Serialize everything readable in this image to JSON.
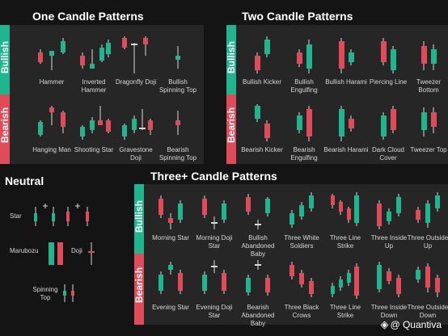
{
  "colors": {
    "bullish": "#1fb58f",
    "bearish": "#e04b5a",
    "wick": "#d9d9d9",
    "panel": "#262626",
    "background": "#141414"
  },
  "sections": {
    "one": "One Candle Patterns",
    "two": "Two Candle Patterns",
    "neutral": "Neutral",
    "three": "Three+ Candle Patterns"
  },
  "labels": {
    "bullish": "Bullish",
    "bearish": "Bearish"
  },
  "one": {
    "bullish": [
      "Hammer",
      "Inverted Hammer",
      "Dragonfly Doji",
      "Bullish Spinning Top"
    ],
    "bearish": [
      "Hanging Man",
      "Shooting Star",
      "Gravestone Doji",
      "Bearish Spinning Top"
    ]
  },
  "two": {
    "bullish": [
      "Bullish Kicker",
      "Bullish Engulfing",
      "Bullish Harami",
      "Piercing Line",
      "Tweezer Bottom"
    ],
    "bearish": [
      "Bearish Kicker",
      "Bearish Engulfing",
      "Bearish Harami",
      "Dark Cloud Cover",
      "Tweezer Top"
    ]
  },
  "neutral": {
    "star": "Star",
    "marubozu": "Marubozu",
    "doji": "Doji",
    "spinning_top": "Spinning Top"
  },
  "three": {
    "bullish": [
      "Morning Star",
      "Morning Doji Star",
      "Bullish Abandoned Baby",
      "Three White Soldiers",
      "Three Line Strike",
      "Three Inside Up",
      "Three Outside Up"
    ],
    "bearish": [
      "Evening Star",
      "Evening Doji Star",
      "Bearish Abandoned Baby",
      "Three Black Crows",
      "Three Line Strike",
      "Three Inside Down",
      "Three Outside Down"
    ]
  },
  "brand": {
    "name": "Quantiva",
    "prefix": "@"
  }
}
